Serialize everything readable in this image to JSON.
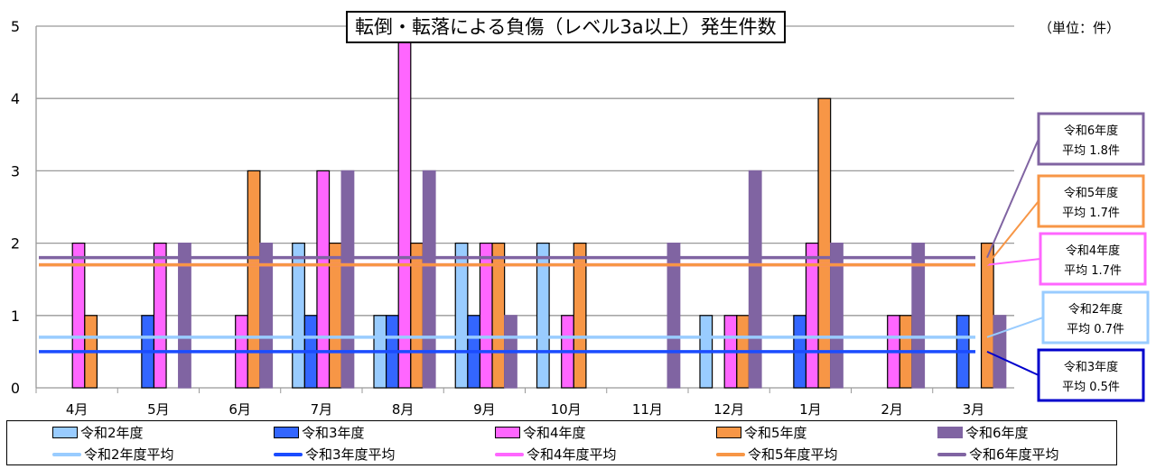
{
  "chart_data": {
    "type": "bar",
    "title": "転倒・転落による負傷（レベル3a以上）発生件数",
    "unit_label": "（単位：件）",
    "categories": [
      "4月",
      "5月",
      "6月",
      "7月",
      "8月",
      "9月",
      "10月",
      "11月",
      "12月",
      "1月",
      "2月",
      "3月"
    ],
    "ylim": [
      0,
      5
    ],
    "yticks": [
      "0",
      "1",
      "2",
      "3",
      "4",
      "5"
    ],
    "grid": true,
    "legend_position": "bottom",
    "series": [
      {
        "name": "令和2年度",
        "color": "#99ccff",
        "values": [
          0,
          0,
          0,
          2,
          1,
          2,
          2,
          0,
          1,
          0,
          0,
          0
        ]
      },
      {
        "name": "令和3年度",
        "color": "#3366ff",
        "values": [
          0,
          1,
          0,
          1,
          1,
          1,
          0,
          0,
          0,
          1,
          0,
          1
        ]
      },
      {
        "name": "令和4年度",
        "color": "#ff66ff",
        "values": [
          2,
          2,
          1,
          3,
          5,
          2,
          1,
          0,
          1,
          2,
          1,
          0
        ]
      },
      {
        "name": "令和5年度",
        "color": "#f79646",
        "values": [
          1,
          0,
          3,
          2,
          2,
          2,
          2,
          0,
          1,
          4,
          1,
          2
        ]
      },
      {
        "name": "令和6年度",
        "color": "#8064a2",
        "values": [
          0,
          2,
          2,
          3,
          3,
          1,
          0,
          2,
          3,
          2,
          2,
          1
        ]
      }
    ],
    "averages": [
      {
        "name": "令和2年度平均",
        "color": "#99ccff",
        "value": 0.7,
        "callout": [
          "令和2年度",
          "平均 0.7件"
        ]
      },
      {
        "name": "令和3年度平均",
        "color": "#0000cc",
        "line_color": "#1a4cff",
        "value": 0.5,
        "callout": [
          "令和3年度",
          "平均 0.5件"
        ]
      },
      {
        "name": "令和4年度平均",
        "color": "#ff66ff",
        "value": 1.7,
        "callout": [
          "令和4年度",
          "平均 1.7件"
        ]
      },
      {
        "name": "令和5年度平均",
        "color": "#f79646",
        "value": 1.7,
        "callout": [
          "令和5年度",
          "平均 1.7件"
        ]
      },
      {
        "name": "令和6年度平均",
        "color": "#8064a2",
        "value": 1.8,
        "callout": [
          "令和6年度",
          "平均 1.8件"
        ]
      }
    ]
  }
}
